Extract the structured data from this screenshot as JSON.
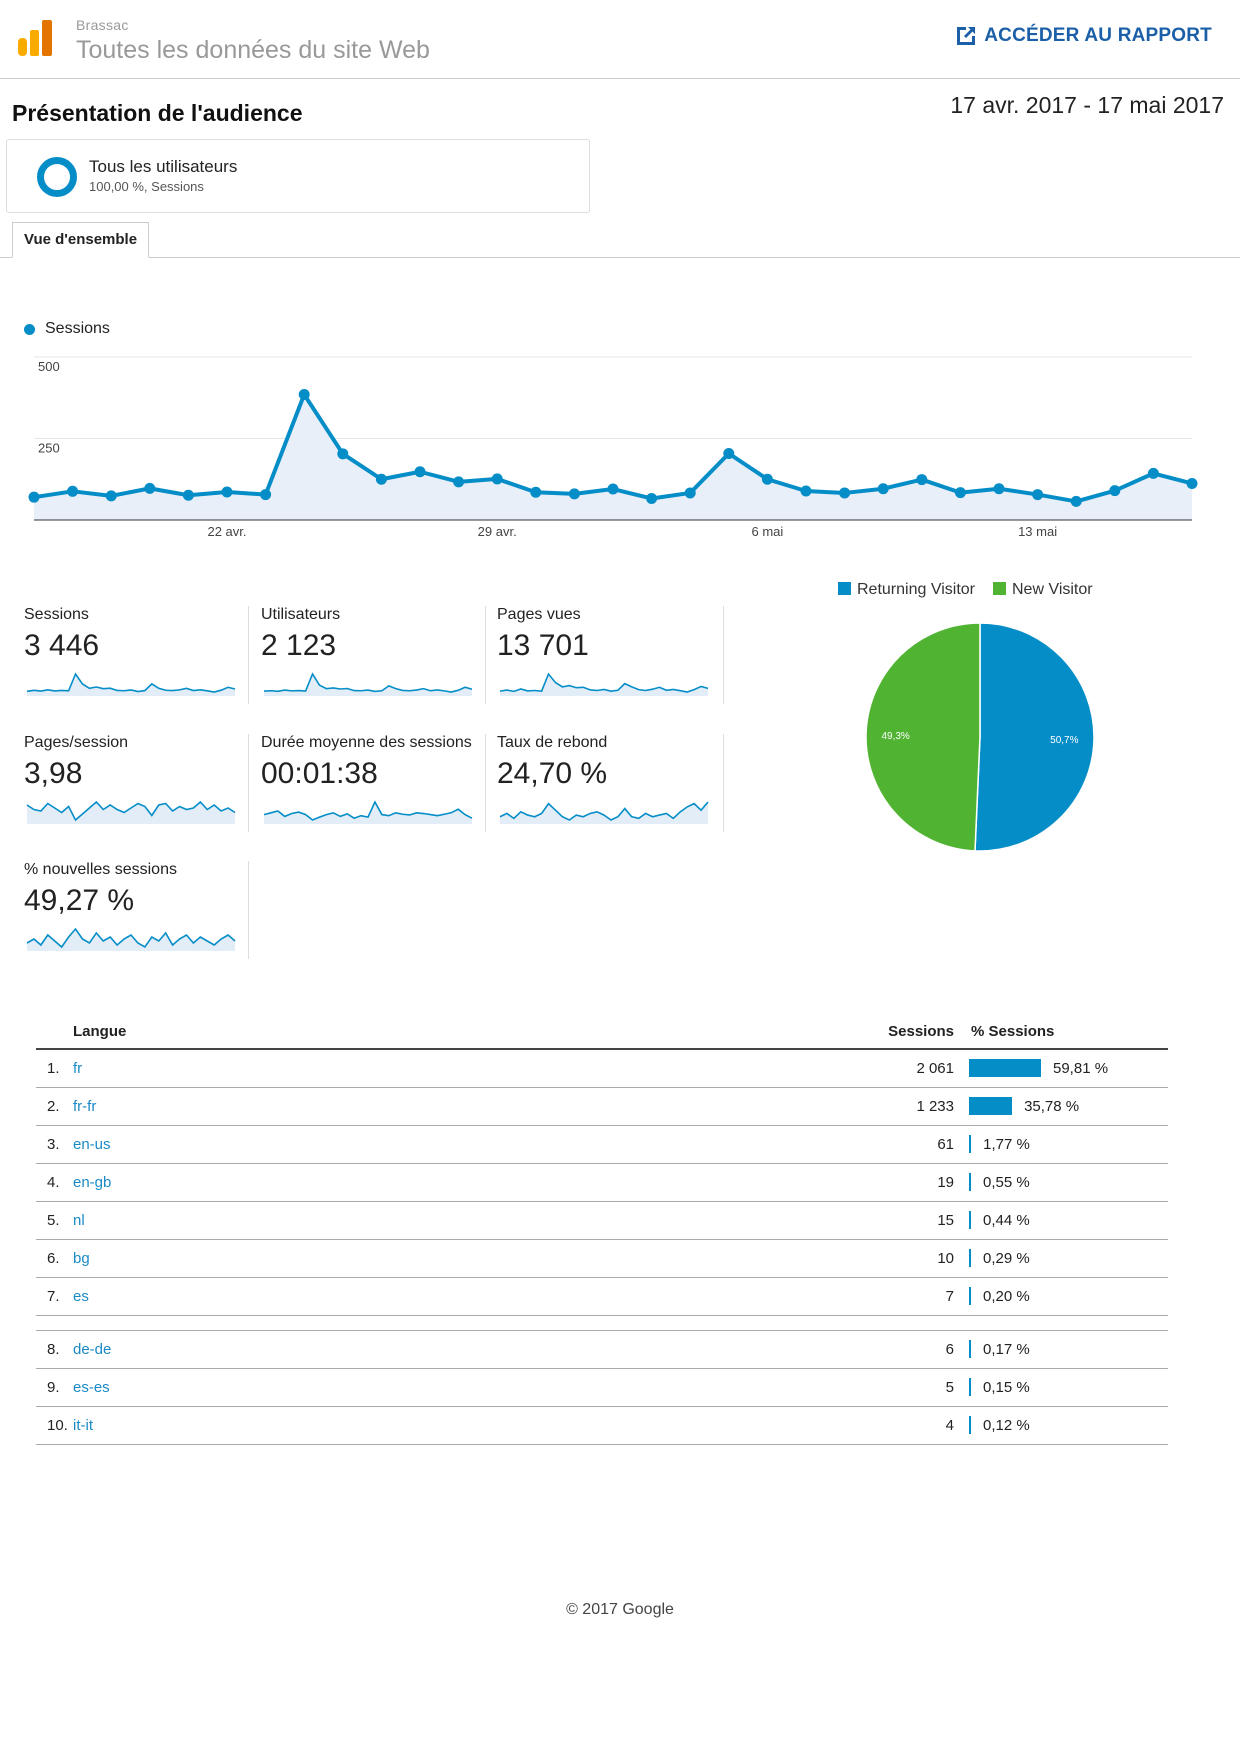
{
  "header": {
    "brand": "Brassac",
    "site_title": "Toutes les données du site Web",
    "report_link": "ACCÉDER AU RAPPORT",
    "page_title": "Présentation de l'audience",
    "date_range": "17 avr. 2017 - 17 mai 2017"
  },
  "segment": {
    "name": "Tous les utilisateurs",
    "sub": "100,00 %, Sessions"
  },
  "tab": {
    "label": "Vue d'ensemble"
  },
  "colors": {
    "accent": "#058dc7",
    "new_visitor": "#50b432",
    "link": "#1a8ac6"
  },
  "chart_data": [
    {
      "type": "area",
      "legend": "Sessions",
      "series": [
        {
          "name": "Sessions",
          "values": [
            70,
            88,
            74,
            97,
            76,
            86,
            78,
            385,
            203,
            125,
            148,
            117,
            126,
            85,
            80,
            95,
            66,
            83,
            204,
            125,
            89,
            83,
            96,
            124,
            84,
            96,
            78,
            57,
            90,
            143,
            112
          ]
        }
      ],
      "x_tick_labels": [
        "22 avr.",
        "29 avr.",
        "6 mai",
        "13 mai"
      ],
      "x_tick_index": [
        5,
        12,
        19,
        26
      ],
      "y_ticks": [
        "500",
        "250"
      ],
      "ylim": [
        0,
        500
      ]
    },
    {
      "type": "pie",
      "legend": [
        "Returning Visitor",
        "New Visitor"
      ],
      "values": [
        50.7,
        49.3
      ],
      "labels": [
        "50,7%",
        "49,3%"
      ],
      "colors": [
        "#058dc7",
        "#50b432"
      ]
    }
  ],
  "metrics": [
    {
      "label": "Sessions",
      "value": "3 446",
      "spark": [
        70,
        88,
        74,
        97,
        76,
        86,
        78,
        385,
        203,
        125,
        148,
        117,
        126,
        85,
        80,
        95,
        66,
        83,
        204,
        125,
        89,
        83,
        96,
        124,
        84,
        96,
        78,
        57,
        90,
        143,
        112
      ]
    },
    {
      "label": "Utilisateurs",
      "value": "2 123",
      "spark": [
        55,
        60,
        52,
        70,
        58,
        62,
        55,
        300,
        140,
        90,
        100,
        85,
        92,
        62,
        60,
        70,
        50,
        60,
        130,
        90,
        65,
        60,
        70,
        90,
        60,
        72,
        58,
        42,
        66,
        110,
        82
      ]
    },
    {
      "label": "Pages vues",
      "value": "13 701",
      "spark": [
        300,
        350,
        290,
        400,
        310,
        330,
        300,
        1100,
        700,
        500,
        560,
        460,
        480,
        360,
        330,
        380,
        300,
        340,
        650,
        500,
        370,
        330,
        390,
        480,
        340,
        380,
        320,
        260,
        370,
        520,
        430
      ]
    },
    {
      "label": "Pages/session",
      "value": "3,98",
      "spark": [
        4.2,
        3.9,
        3.8,
        4.3,
        4.0,
        3.7,
        4.1,
        3.2,
        3.6,
        4.0,
        4.4,
        3.9,
        4.2,
        3.9,
        3.7,
        4.0,
        4.3,
        4.1,
        3.5,
        4.2,
        4.3,
        3.8,
        4.1,
        3.9,
        4.0,
        4.4,
        3.9,
        4.2,
        3.8,
        4.0,
        3.7
      ]
    },
    {
      "label": "Durée moyenne des sessions",
      "value": "00:01:38",
      "spark": [
        95,
        100,
        105,
        90,
        98,
        102,
        95,
        80,
        88,
        95,
        100,
        90,
        97,
        85,
        92,
        88,
        130,
        95,
        92,
        100,
        96,
        94,
        100,
        98,
        95,
        92,
        96,
        100,
        110,
        95,
        85
      ]
    },
    {
      "label": "Taux de rebond",
      "value": "24,70 %",
      "spark": [
        22,
        24,
        21,
        25,
        23,
        22,
        24,
        30,
        26,
        22,
        20,
        23,
        22,
        24,
        25,
        23,
        20,
        22,
        27,
        22,
        21,
        24,
        22,
        23,
        24,
        21,
        25,
        28,
        30,
        26,
        31
      ]
    },
    {
      "label": "% nouvelles sessions",
      "value": "49,27 %",
      "spark": [
        48,
        50,
        47,
        52,
        49,
        46,
        51,
        55,
        50,
        48,
        53,
        49,
        51,
        47,
        50,
        52,
        48,
        46,
        51,
        49,
        53,
        47,
        50,
        52,
        48,
        51,
        49,
        47,
        50,
        52,
        49
      ]
    }
  ],
  "table": {
    "headers": {
      "language": "Langue",
      "sessions": "Sessions",
      "pct_sessions": "% Sessions"
    },
    "rows": [
      {
        "rank": "1.",
        "lang": "fr",
        "sessions": "2 061",
        "pct": "59,81 %",
        "share": 59.81
      },
      {
        "rank": "2.",
        "lang": "fr-fr",
        "sessions": "1 233",
        "pct": "35,78 %",
        "share": 35.78
      },
      {
        "rank": "3.",
        "lang": "en-us",
        "sessions": "61",
        "pct": "1,77 %",
        "share": 1.77
      },
      {
        "rank": "4.",
        "lang": "en-gb",
        "sessions": "19",
        "pct": "0,55 %",
        "share": 0.55
      },
      {
        "rank": "5.",
        "lang": "nl",
        "sessions": "15",
        "pct": "0,44 %",
        "share": 0.44
      },
      {
        "rank": "6.",
        "lang": "bg",
        "sessions": "10",
        "pct": "0,29 %",
        "share": 0.29
      },
      {
        "rank": "7.",
        "lang": "es",
        "sessions": "7",
        "pct": "0,20 %",
        "share": 0.2
      },
      {
        "rank": "8.",
        "lang": "de-de",
        "sessions": "6",
        "pct": "0,17 %",
        "share": 0.17
      },
      {
        "rank": "9.",
        "lang": "es-es",
        "sessions": "5",
        "pct": "0,15 %",
        "share": 0.15
      },
      {
        "rank": "10.",
        "lang": "it-it",
        "sessions": "4",
        "pct": "0,12 %",
        "share": 0.12
      }
    ]
  },
  "footer": "© 2017 Google"
}
